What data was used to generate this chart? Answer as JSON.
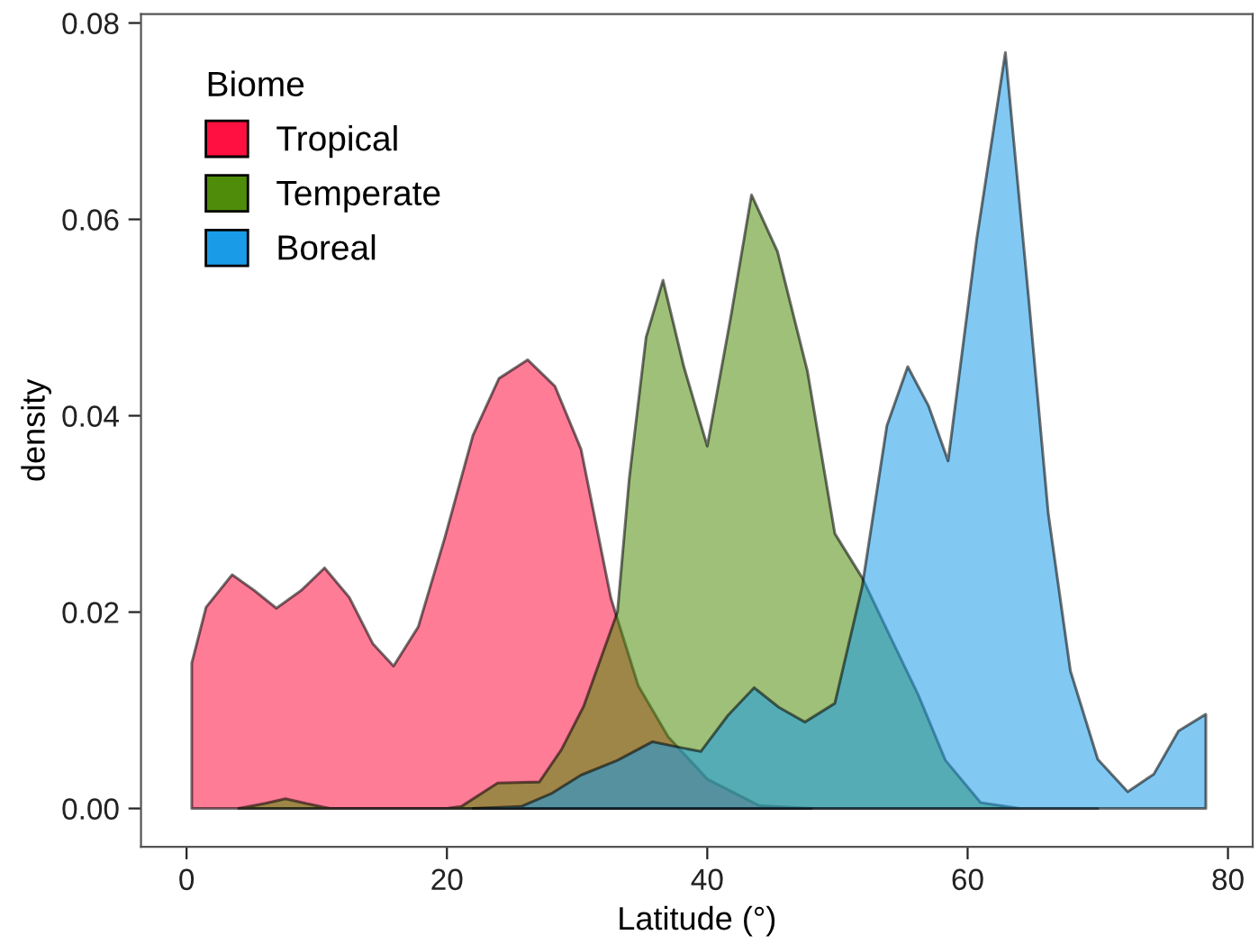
{
  "chart_data": {
    "type": "area",
    "xlabel": "Latitude (°)",
    "ylabel": "density",
    "legend_title": "Biome",
    "legend": "top left",
    "grid": false,
    "xlim": [
      -3.5,
      81.9
    ],
    "ylim": [
      -0.0039,
      0.0809
    ],
    "xticks": [
      0,
      20,
      40,
      60,
      80
    ],
    "yticks": [
      {
        "value": 0,
        "label": "0.00"
      },
      {
        "value": 0.02,
        "label": "0.02"
      },
      {
        "value": 0.04,
        "label": "0.04"
      },
      {
        "value": 0.06,
        "label": "0.06"
      },
      {
        "value": 0.08,
        "label": "0.08"
      }
    ],
    "series": [
      {
        "name": "Tropical",
        "color": "#ff1040",
        "x": [
          0.4,
          1.5,
          3.5,
          5.2,
          6.9,
          8.8,
          10.6,
          12.5,
          14.3,
          15.9,
          17.8,
          19.8,
          22,
          24,
          26.2,
          28.3,
          30.3,
          32.6,
          34.7,
          37,
          40,
          44,
          48
        ],
        "values": [
          0.0148,
          0.0205,
          0.0238,
          0.0222,
          0.0204,
          0.0222,
          0.0245,
          0.0215,
          0.0168,
          0.0145,
          0.0185,
          0.0274,
          0.038,
          0.0438,
          0.0457,
          0.043,
          0.0366,
          0.0214,
          0.0125,
          0.0073,
          0.003,
          0.0003,
          0
        ]
      },
      {
        "name": "Temperate",
        "color": "#4e8c0a",
        "x": [
          4,
          6,
          7.6,
          9.2,
          11,
          20,
          21.1,
          23.9,
          27.1,
          28.8,
          30.5,
          33.1,
          34,
          35.3,
          36.6,
          38.2,
          40,
          41.8,
          43.4,
          45.4,
          47.7,
          49.8,
          51.9,
          54.2,
          56.2,
          58.3,
          61,
          64,
          70
        ],
        "values": [
          0,
          0.0005,
          0.001,
          0.0005,
          0,
          0,
          0.0002,
          0.0026,
          0.0027,
          0.006,
          0.0104,
          0.02,
          0.0335,
          0.048,
          0.0538,
          0.045,
          0.0369,
          0.05,
          0.0625,
          0.0567,
          0.0445,
          0.028,
          0.0235,
          0.0171,
          0.0116,
          0.0049,
          0.0006,
          0,
          0
        ]
      },
      {
        "name": "Boreal",
        "color": "#1a9be8",
        "x": [
          22,
          25.7,
          28,
          30.3,
          33.1,
          35.8,
          37.6,
          39.5,
          41.6,
          43.6,
          45.5,
          47.5,
          49.8,
          51.9,
          53.8,
          55.4,
          57,
          58.5,
          60.7,
          62.9,
          64.7,
          66.2,
          67.9,
          70,
          72.3,
          74.3,
          76.2,
          78.3
        ],
        "values": [
          0,
          0.0002,
          0.0015,
          0.0034,
          0.0049,
          0.0068,
          0.0063,
          0.0058,
          0.0095,
          0.0123,
          0.0103,
          0.0088,
          0.0107,
          0.0226,
          0.039,
          0.045,
          0.041,
          0.0354,
          0.058,
          0.077,
          0.0518,
          0.03,
          0.014,
          0.005,
          0.0017,
          0.0035,
          0.0079,
          0.0096
        ]
      }
    ]
  }
}
